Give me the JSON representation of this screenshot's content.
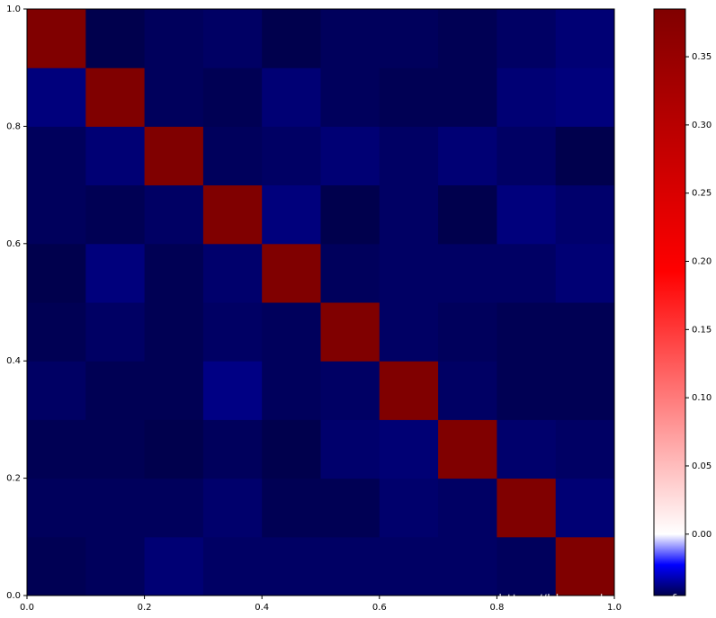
{
  "chart_data": {
    "type": "heatmap",
    "colormap": "seismic",
    "clim": [
      -0.045,
      0.385
    ],
    "vcenter": 0,
    "xlim": [
      0,
      1
    ],
    "ylim": [
      0,
      1
    ],
    "xticks": [
      {
        "value": 0,
        "label": "0.0"
      },
      {
        "value": 0.2,
        "label": "0.2"
      },
      {
        "value": 0.4,
        "label": "0.4"
      },
      {
        "value": 0.6,
        "label": "0.6"
      },
      {
        "value": 0.8,
        "label": "0.8"
      },
      {
        "value": 1,
        "label": "1.0"
      }
    ],
    "yticks": [
      {
        "value": 0,
        "label": "0.0"
      },
      {
        "value": 0.2,
        "label": "0.2"
      },
      {
        "value": 0.4,
        "label": "0.4"
      },
      {
        "value": 0.6,
        "label": "0.6"
      },
      {
        "value": 0.8,
        "label": "0.8"
      },
      {
        "value": 1,
        "label": "1.0"
      }
    ],
    "cticks": [
      {
        "value": 0,
        "label": "0.00"
      },
      {
        "value": 0.05,
        "label": "0.05"
      },
      {
        "value": 0.1,
        "label": "0.10"
      },
      {
        "value": 0.15,
        "label": "0.15"
      },
      {
        "value": 0.2,
        "label": "0.20"
      },
      {
        "value": 0.25,
        "label": "0.25"
      },
      {
        "value": 0.3,
        "label": "0.30"
      },
      {
        "value": 0.35,
        "label": "0.35"
      }
    ],
    "z": [
      [
        -0.044,
        -0.043,
        -0.04,
        -0.042,
        -0.042,
        -0.042,
        -0.042,
        -0.042,
        -0.043,
        0.385
      ],
      [
        -0.043,
        -0.043,
        -0.043,
        -0.041,
        -0.044,
        -0.044,
        -0.041,
        -0.042,
        0.385,
        -0.04
      ],
      [
        -0.044,
        -0.044,
        -0.045,
        -0.043,
        -0.045,
        -0.041,
        -0.04,
        0.385,
        -0.041,
        -0.042
      ],
      [
        -0.042,
        -0.044,
        -0.044,
        -0.038,
        -0.043,
        -0.042,
        0.385,
        -0.042,
        -0.044,
        -0.044
      ],
      [
        -0.044,
        -0.042,
        -0.044,
        -0.042,
        -0.043,
        0.385,
        -0.042,
        -0.043,
        -0.044,
        -0.044
      ],
      [
        -0.045,
        -0.039,
        -0.044,
        -0.041,
        0.385,
        -0.043,
        -0.042,
        -0.042,
        -0.042,
        -0.04
      ],
      [
        -0.043,
        -0.044,
        -0.042,
        0.385,
        -0.039,
        -0.045,
        -0.042,
        -0.045,
        -0.039,
        -0.041
      ],
      [
        -0.043,
        -0.04,
        0.385,
        -0.043,
        -0.042,
        -0.04,
        -0.042,
        -0.04,
        -0.042,
        -0.045
      ],
      [
        -0.039,
        0.385,
        -0.043,
        -0.044,
        -0.04,
        -0.043,
        -0.044,
        -0.044,
        -0.04,
        -0.039
      ],
      [
        0.385,
        -0.045,
        -0.043,
        -0.042,
        -0.045,
        -0.043,
        -0.043,
        -0.044,
        -0.042,
        -0.04
      ]
    ]
  },
  "watermark": "https://blog.csdn.net/rosefun96"
}
